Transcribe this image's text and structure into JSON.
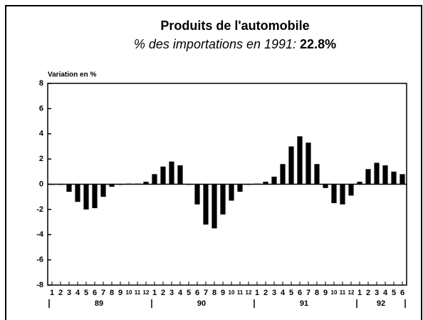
{
  "chart_data": {
    "type": "bar",
    "title": "Produits de l'automobile",
    "subtitle": "% des importations en 1991:",
    "subtitle_highlight": "22.8%",
    "y_label": "Variation en %",
    "categories": [
      "1",
      "2",
      "3",
      "4",
      "5",
      "6",
      "7",
      "8",
      "9",
      "10",
      "11",
      "12",
      "1",
      "2",
      "3",
      "4",
      "5",
      "6",
      "7",
      "8",
      "9",
      "10",
      "11",
      "12",
      "1",
      "2",
      "3",
      "4",
      "5",
      "6",
      "7",
      "8",
      "9",
      "10",
      "11",
      "12",
      "1",
      "2",
      "3",
      "4",
      "5",
      "6"
    ],
    "group_labels": [
      "89",
      "90",
      "91",
      "92"
    ],
    "values": [
      0,
      0,
      -0.6,
      -1.4,
      -2.0,
      -1.9,
      -1.0,
      -0.2,
      0,
      0.05,
      0.05,
      0.2,
      0.8,
      1.4,
      1.8,
      1.5,
      0,
      -1.6,
      -3.2,
      -3.5,
      -2.4,
      -1.3,
      -0.6,
      0,
      0.05,
      0.2,
      0.6,
      1.6,
      3.0,
      3.8,
      3.3,
      1.6,
      -0.3,
      -1.5,
      -1.6,
      -0.9,
      0.2,
      1.2,
      1.7,
      1.5,
      1.0,
      0.8
    ],
    "color": "#000000",
    "ylim": [
      -8,
      8
    ],
    "yticks": [
      -8,
      -6,
      -4,
      -2,
      0,
      2,
      4,
      6,
      8
    ]
  }
}
